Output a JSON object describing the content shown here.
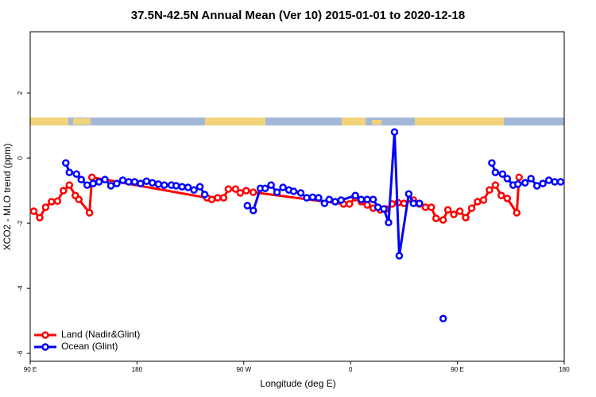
{
  "chart_data": {
    "type": "line",
    "title": "37.5N-42.5N Annual Mean (Ver 10)   2015-01-01 to 2020-12-18",
    "xlabel": "Longitude (deg E)",
    "ylabel": "XCO2 - MLO trend (ppm)",
    "xlim": [
      90,
      540
    ],
    "xticks": [
      {
        "value": 90,
        "label": "90 E"
      },
      {
        "value": 180,
        "label": "180"
      },
      {
        "value": 270,
        "label": "90 W"
      },
      {
        "value": 360,
        "label": "0"
      },
      {
        "value": 450,
        "label": "90 E"
      },
      {
        "value": 540,
        "label": "180"
      }
    ],
    "ylim": [
      -6.24,
      3.88
    ],
    "yticks": [
      2,
      0,
      -2,
      -4,
      -6
    ],
    "legend": "bottomleft",
    "series": [
      {
        "name": "Land (Nadir&Glint)",
        "color": "#ff0000",
        "x": [
          93,
          98,
          103,
          108,
          113,
          118,
          123,
          128,
          131,
          140,
          142,
          239,
          243,
          248,
          253,
          257,
          263,
          267,
          272,
          278,
          354,
          359,
          364,
          369,
          374,
          379,
          385,
          390,
          395,
          400,
          405,
          413,
          418,
          423,
          428,
          432,
          438,
          442,
          447,
          452,
          457,
          462,
          467,
          472,
          477,
          482,
          487,
          492,
          500,
          502
        ],
        "values": [
          -1.63,
          -1.83,
          -1.51,
          -1.34,
          -1.32,
          -1.0,
          -0.83,
          -1.15,
          -1.27,
          -1.68,
          -0.59,
          -1.22,
          -1.27,
          -1.22,
          -1.22,
          -0.95,
          -0.95,
          -1.07,
          -1.0,
          -1.05,
          -1.41,
          -1.41,
          -1.22,
          -1.34,
          -1.44,
          -1.54,
          -1.59,
          -1.56,
          -1.41,
          -1.37,
          -1.39,
          -1.29,
          -1.41,
          -1.51,
          -1.51,
          -1.85,
          -1.9,
          -1.59,
          -1.73,
          -1.63,
          -1.83,
          -1.54,
          -1.34,
          -1.29,
          -0.98,
          -0.83,
          -1.15,
          -1.24,
          -1.68,
          -0.59
        ]
      },
      {
        "name": "Ocean (Glint)",
        "color": "#0000ff",
        "x": [
          120,
          123,
          129,
          133,
          138,
          143,
          148,
          153,
          158,
          163,
          168,
          173,
          178,
          183,
          188,
          193,
          198,
          203,
          209,
          213,
          218,
          223,
          228,
          233,
          237,
          null,
          273,
          278,
          284,
          288,
          293,
          298,
          303,
          308,
          312,
          318,
          323,
          328,
          333,
          338,
          342,
          347,
          352,
          364,
          369,
          374,
          379,
          383,
          388,
          392,
          397,
          401,
          409,
          413,
          418,
          null,
          438,
          null,
          479,
          482,
          488,
          492,
          497,
          501,
          507,
          512,
          517,
          522,
          527,
          532,
          537
        ],
        "values": [
          -0.15,
          -0.44,
          -0.49,
          -0.66,
          -0.83,
          -0.78,
          -0.73,
          -0.66,
          -0.85,
          -0.78,
          -0.68,
          -0.73,
          -0.73,
          -0.78,
          -0.71,
          -0.76,
          -0.8,
          -0.83,
          -0.83,
          -0.85,
          -0.88,
          -0.9,
          -0.98,
          -0.88,
          -1.12,
          null,
          -1.46,
          -1.61,
          -0.93,
          -0.93,
          -0.83,
          -1.05,
          -0.9,
          -0.98,
          -1.02,
          -1.07,
          -1.22,
          -1.2,
          -1.22,
          -1.39,
          -1.27,
          -1.34,
          -1.29,
          -1.15,
          -1.27,
          -1.27,
          -1.27,
          -1.51,
          -1.56,
          -1.98,
          0.8,
          -3.0,
          -1.1,
          -1.39,
          -1.39,
          null,
          -4.93,
          null,
          -0.15,
          -0.44,
          -0.49,
          -0.63,
          -0.83,
          -0.8,
          -0.76,
          -0.63,
          -0.85,
          -0.78,
          -0.68,
          -0.73,
          -0.73
        ]
      }
    ]
  }
}
